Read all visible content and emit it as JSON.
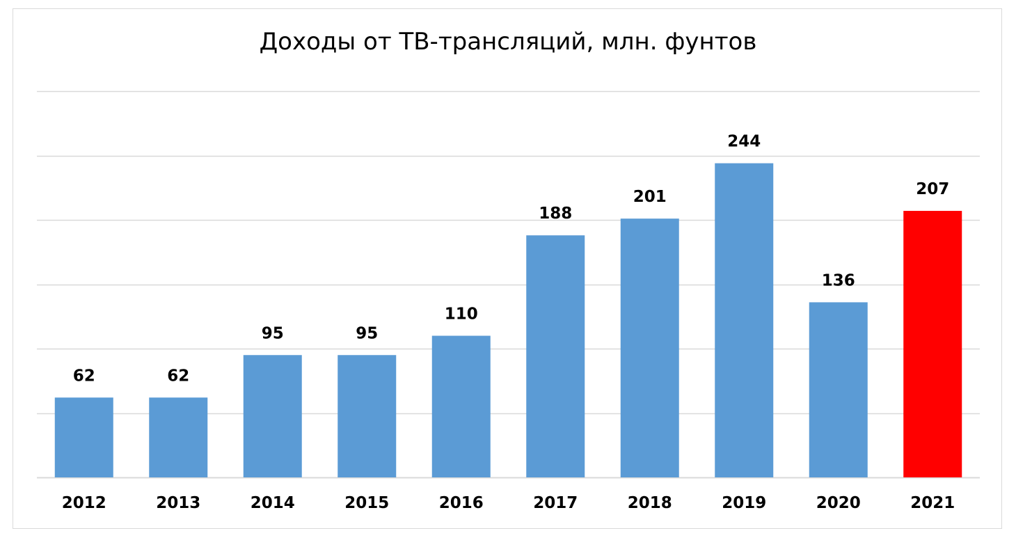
{
  "chart_data": {
    "type": "bar",
    "title": "Доходы от ТВ-трансляций, млн. фунтов",
    "categories": [
      "2012",
      "2013",
      "2014",
      "2015",
      "2016",
      "2017",
      "2018",
      "2019",
      "2020",
      "2021"
    ],
    "values": [
      62,
      62,
      95,
      95,
      110,
      188,
      201,
      244,
      136,
      207
    ],
    "value_labels": [
      "62",
      "62",
      "95",
      "95",
      "110",
      "188",
      "201",
      "244",
      "136",
      "207"
    ],
    "highlight_category": "2021",
    "colors": {
      "bar": "#5b9bd5",
      "highlight": "#ff0000",
      "grid": "#d9d9d9",
      "frame": "#d9d9d9"
    },
    "ylim": [
      0,
      300
    ],
    "y_tick_step": 50,
    "grid": true,
    "legend": "none",
    "xlabel": "",
    "ylabel": ""
  }
}
